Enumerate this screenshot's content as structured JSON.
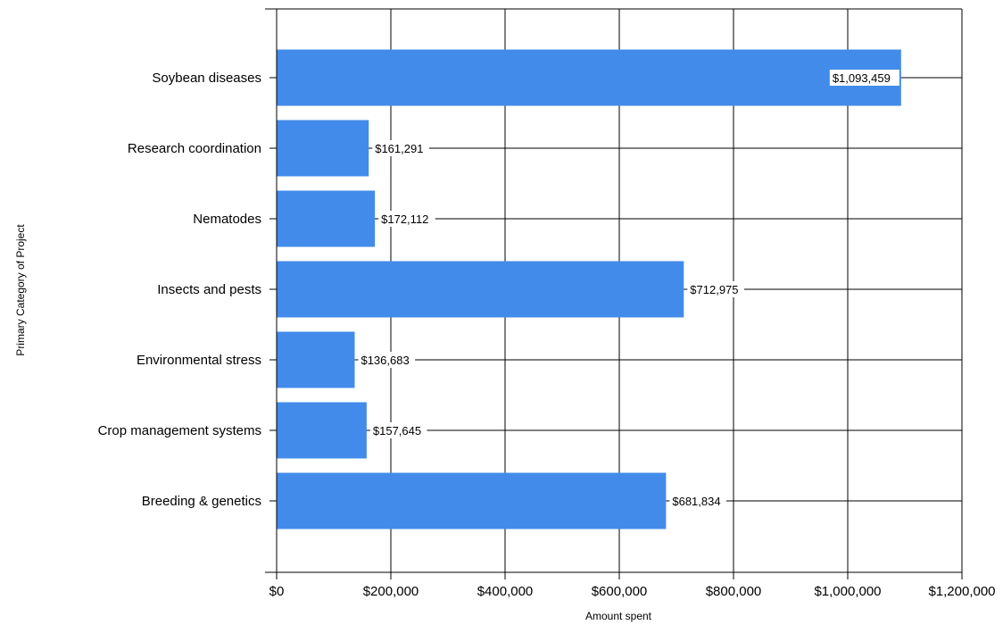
{
  "chart_data": {
    "type": "bar",
    "orientation": "horizontal",
    "title": "",
    "xlabel": "Amount spent",
    "ylabel": "Primary Category of Project",
    "categories": [
      "Soybean diseases",
      "Research coordination",
      "Nematodes",
      "Insects and pests",
      "Environmental stress",
      "Crop management systems",
      "Breeding & genetics"
    ],
    "values": [
      1093459,
      161291,
      172112,
      712975,
      136683,
      157645,
      681834
    ],
    "data_labels": [
      "$1,093,459",
      "$161,291",
      "$172,112",
      "$712,975",
      "$136,683",
      "$157,645",
      "$681,834"
    ],
    "xlim": [
      0,
      1200000
    ],
    "xticks": [
      0,
      200000,
      400000,
      600000,
      800000,
      1000000,
      1200000
    ],
    "xtick_labels": [
      "$0",
      "$200,000",
      "$400,000",
      "$600,000",
      "$800,000",
      "$1,000,000",
      "$1,200,000"
    ],
    "grid": true,
    "legend": "none",
    "bar_color": "#428BEA"
  }
}
